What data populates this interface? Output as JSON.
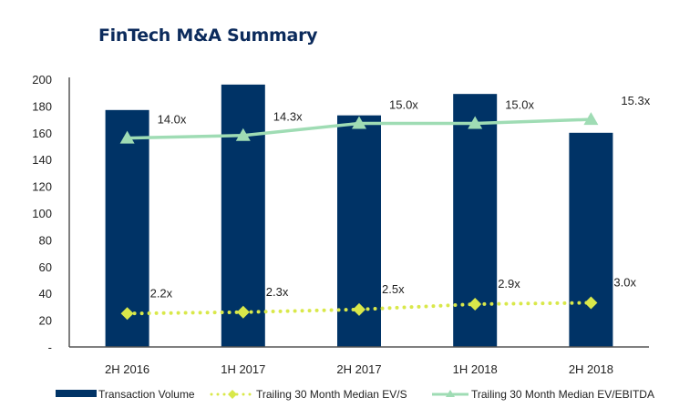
{
  "title": "FinTech M&A Summary",
  "chart_data": {
    "type": "bar",
    "title": "FinTech M&A Summary",
    "categories": [
      "2H 2016",
      "1H 2017",
      "2H 2017",
      "1H 2018",
      "2H 2018"
    ],
    "ylim": [
      0,
      200
    ],
    "yticks": [
      "-",
      "20",
      "40",
      "60",
      "80",
      "100",
      "120",
      "140",
      "160",
      "180",
      "200"
    ],
    "grid": false,
    "legend_position": "bottom",
    "series": [
      {
        "name": "Transaction Volume",
        "type": "bar",
        "color": "#003366",
        "values": [
          177,
          196,
          173,
          189,
          160
        ]
      },
      {
        "name": "Trailing 30 Month Median EV/S",
        "type": "line",
        "style": "dotted",
        "marker": "diamond",
        "color": "#d9e84a",
        "values": [
          25,
          26,
          28,
          32,
          33
        ],
        "labels": [
          "2.2x",
          "2.3x",
          "2.5x",
          "2.9x",
          "3.0x"
        ]
      },
      {
        "name": "Trailing 30 Month Median EV/EBITDA",
        "type": "line",
        "marker": "triangle",
        "color": "#9fdcb4",
        "values": [
          156,
          158,
          167,
          167,
          170
        ],
        "labels": [
          "14.0x",
          "14.3x",
          "15.0x",
          "15.0x",
          "15.3x"
        ]
      }
    ]
  }
}
